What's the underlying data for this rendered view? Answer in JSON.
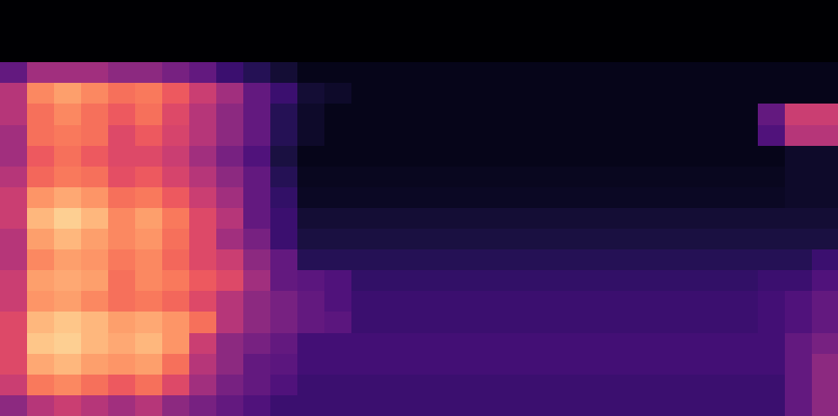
{
  "chart_data": {
    "type": "heatmap",
    "tick_labels": false,
    "color_range": [
      0,
      1
    ],
    "cells": [
      [
        0,
        0,
        0,
        0,
        0,
        0,
        0,
        0,
        0,
        0,
        0,
        0,
        0,
        0,
        0,
        0,
        0,
        0,
        0,
        0,
        0,
        0,
        0,
        0,
        0,
        0,
        0,
        0,
        0,
        0,
        0
      ],
      [
        0,
        0,
        0,
        0,
        0,
        0,
        0,
        0,
        0,
        0,
        0,
        0,
        0,
        0,
        0,
        0,
        0,
        0,
        0,
        0,
        0,
        0,
        0,
        0,
        0,
        0,
        0,
        0,
        0,
        0,
        0
      ],
      [
        0,
        0,
        0,
        0,
        0,
        0,
        0,
        0,
        0,
        0,
        0,
        0,
        0,
        0,
        0,
        0,
        0,
        0,
        0,
        0,
        0,
        0,
        0,
        0,
        0,
        0,
        0,
        0,
        0,
        0,
        0
      ],
      [
        0.3,
        0.45,
        0.45,
        0.45,
        0.4,
        0.4,
        0.35,
        0.3,
        0.2,
        0.15,
        0.1,
        0.05,
        0.05,
        0.05,
        0.05,
        0.05,
        0.05,
        0.05,
        0.05,
        0.05,
        0.05,
        0.05,
        0.05,
        0.05,
        0.05,
        0.05,
        0.05,
        0.05,
        0.05,
        0.05,
        0.05
      ],
      [
        0.5,
        0.75,
        0.8,
        0.75,
        0.7,
        0.72,
        0.65,
        0.55,
        0.45,
        0.3,
        0.2,
        0.1,
        0.08,
        0.05,
        0.05,
        0.05,
        0.05,
        0.05,
        0.05,
        0.05,
        0.05,
        0.05,
        0.05,
        0.05,
        0.05,
        0.05,
        0.05,
        0.05,
        0.05,
        0.05,
        0.05
      ],
      [
        0.5,
        0.7,
        0.75,
        0.7,
        0.65,
        0.7,
        0.6,
        0.5,
        0.4,
        0.3,
        0.15,
        0.08,
        0.05,
        0.05,
        0.05,
        0.05,
        0.05,
        0.05,
        0.05,
        0.05,
        0.05,
        0.05,
        0.05,
        0.05,
        0.05,
        0.05,
        0.05,
        0.05,
        0.3,
        0.55,
        0.55
      ],
      [
        0.45,
        0.7,
        0.72,
        0.7,
        0.6,
        0.65,
        0.58,
        0.5,
        0.4,
        0.3,
        0.15,
        0.08,
        0.05,
        0.05,
        0.05,
        0.05,
        0.05,
        0.05,
        0.05,
        0.05,
        0.05,
        0.05,
        0.05,
        0.05,
        0.05,
        0.05,
        0.05,
        0.05,
        0.25,
        0.5,
        0.5
      ],
      [
        0.45,
        0.65,
        0.7,
        0.65,
        0.6,
        0.6,
        0.55,
        0.45,
        0.35,
        0.25,
        0.12,
        0.05,
        0.05,
        0.05,
        0.05,
        0.05,
        0.05,
        0.05,
        0.05,
        0.05,
        0.05,
        0.05,
        0.05,
        0.05,
        0.05,
        0.05,
        0.05,
        0.05,
        0.05,
        0.08,
        0.08
      ],
      [
        0.5,
        0.68,
        0.72,
        0.7,
        0.62,
        0.65,
        0.58,
        0.5,
        0.4,
        0.3,
        0.15,
        0.06,
        0.06,
        0.06,
        0.06,
        0.06,
        0.06,
        0.06,
        0.06,
        0.06,
        0.06,
        0.06,
        0.06,
        0.06,
        0.06,
        0.06,
        0.06,
        0.06,
        0.06,
        0.08,
        0.08
      ],
      [
        0.55,
        0.78,
        0.82,
        0.78,
        0.7,
        0.72,
        0.65,
        0.55,
        0.45,
        0.3,
        0.18,
        0.07,
        0.07,
        0.07,
        0.07,
        0.07,
        0.07,
        0.07,
        0.07,
        0.07,
        0.07,
        0.07,
        0.07,
        0.07,
        0.07,
        0.07,
        0.07,
        0.07,
        0.07,
        0.08,
        0.08
      ],
      [
        0.55,
        0.85,
        0.9,
        0.85,
        0.75,
        0.8,
        0.72,
        0.6,
        0.5,
        0.3,
        0.2,
        0.1,
        0.1,
        0.1,
        0.1,
        0.1,
        0.1,
        0.1,
        0.1,
        0.1,
        0.1,
        0.1,
        0.1,
        0.1,
        0.1,
        0.1,
        0.1,
        0.1,
        0.1,
        0.1,
        0.1
      ],
      [
        0.5,
        0.8,
        0.85,
        0.8,
        0.75,
        0.78,
        0.7,
        0.6,
        0.45,
        0.35,
        0.2,
        0.12,
        0.12,
        0.12,
        0.12,
        0.12,
        0.12,
        0.12,
        0.12,
        0.12,
        0.12,
        0.12,
        0.12,
        0.12,
        0.12,
        0.12,
        0.12,
        0.12,
        0.12,
        0.12,
        0.12
      ],
      [
        0.5,
        0.75,
        0.8,
        0.78,
        0.72,
        0.75,
        0.68,
        0.6,
        0.55,
        0.4,
        0.3,
        0.15,
        0.15,
        0.15,
        0.15,
        0.15,
        0.15,
        0.15,
        0.15,
        0.15,
        0.15,
        0.15,
        0.15,
        0.15,
        0.15,
        0.15,
        0.15,
        0.15,
        0.15,
        0.15,
        0.2
      ],
      [
        0.55,
        0.8,
        0.82,
        0.8,
        0.7,
        0.75,
        0.72,
        0.65,
        0.6,
        0.45,
        0.3,
        0.28,
        0.25,
        0.18,
        0.18,
        0.18,
        0.18,
        0.18,
        0.18,
        0.18,
        0.18,
        0.18,
        0.18,
        0.18,
        0.18,
        0.18,
        0.18,
        0.18,
        0.2,
        0.2,
        0.25
      ],
      [
        0.55,
        0.78,
        0.8,
        0.75,
        0.7,
        0.72,
        0.68,
        0.6,
        0.5,
        0.4,
        0.35,
        0.3,
        0.25,
        0.2,
        0.2,
        0.2,
        0.2,
        0.2,
        0.2,
        0.2,
        0.2,
        0.2,
        0.2,
        0.2,
        0.2,
        0.2,
        0.2,
        0.2,
        0.22,
        0.25,
        0.3
      ],
      [
        0.6,
        0.85,
        0.88,
        0.85,
        0.8,
        0.82,
        0.78,
        0.7,
        0.5,
        0.4,
        0.35,
        0.3,
        0.28,
        0.2,
        0.2,
        0.2,
        0.2,
        0.2,
        0.2,
        0.2,
        0.2,
        0.2,
        0.2,
        0.2,
        0.2,
        0.2,
        0.2,
        0.2,
        0.22,
        0.25,
        0.3
      ],
      [
        0.6,
        0.88,
        0.9,
        0.85,
        0.82,
        0.85,
        0.78,
        0.55,
        0.4,
        0.35,
        0.3,
        0.22,
        0.22,
        0.22,
        0.22,
        0.22,
        0.22,
        0.22,
        0.22,
        0.22,
        0.22,
        0.22,
        0.22,
        0.22,
        0.22,
        0.22,
        0.22,
        0.22,
        0.22,
        0.3,
        0.35
      ],
      [
        0.6,
        0.82,
        0.85,
        0.8,
        0.78,
        0.8,
        0.7,
        0.5,
        0.4,
        0.3,
        0.28,
        0.22,
        0.22,
        0.22,
        0.22,
        0.22,
        0.22,
        0.22,
        0.22,
        0.22,
        0.22,
        0.22,
        0.22,
        0.22,
        0.22,
        0.22,
        0.22,
        0.22,
        0.22,
        0.3,
        0.4
      ],
      [
        0.55,
        0.72,
        0.75,
        0.7,
        0.65,
        0.7,
        0.6,
        0.45,
        0.35,
        0.3,
        0.25,
        0.2,
        0.2,
        0.2,
        0.2,
        0.2,
        0.2,
        0.2,
        0.2,
        0.2,
        0.2,
        0.2,
        0.2,
        0.2,
        0.2,
        0.2,
        0.2,
        0.2,
        0.2,
        0.3,
        0.4
      ],
      [
        0.4,
        0.5,
        0.55,
        0.5,
        0.45,
        0.5,
        0.4,
        0.35,
        0.3,
        0.25,
        0.2,
        0.2,
        0.2,
        0.2,
        0.2,
        0.2,
        0.2,
        0.2,
        0.2,
        0.2,
        0.2,
        0.2,
        0.2,
        0.2,
        0.2,
        0.2,
        0.2,
        0.2,
        0.2,
        0.3,
        0.4
      ]
    ]
  }
}
